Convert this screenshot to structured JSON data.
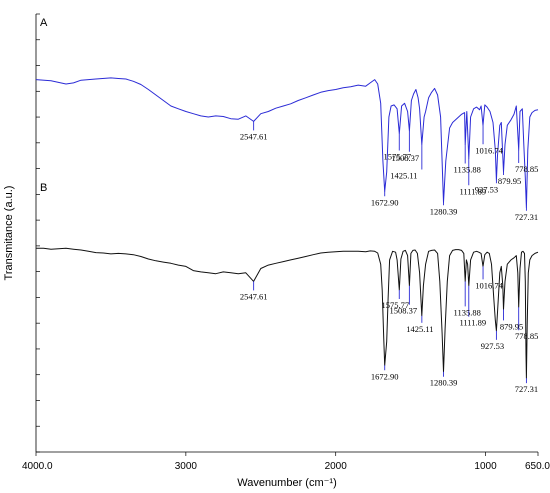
{
  "chart_data": {
    "type": "line",
    "xlabel": "Wavenumber (cm⁻¹)",
    "ylabel": "Transmitance (a.u.)",
    "xlim": [
      4000.0,
      650.0
    ],
    "x_ticks": [
      "4000.0",
      "3000",
      "2000",
      "1000",
      "650.0"
    ],
    "x_tick_values": [
      4000,
      3000,
      2000,
      1000,
      650
    ],
    "y_scale": "relative transmittance, no numeric ticks",
    "grid": false,
    "colors": {
      "A": "#2b2bd6",
      "B": "#111111",
      "marker_A": "#2b2bd6",
      "marker_B": "#2b2bd6"
    },
    "series": [
      {
        "name": "A",
        "points": [
          [
            4000,
            0.88
          ],
          [
            3900,
            0.86
          ],
          [
            3800,
            0.8
          ],
          [
            3750,
            0.82
          ],
          [
            3700,
            0.87
          ],
          [
            3600,
            0.89
          ],
          [
            3500,
            0.91
          ],
          [
            3450,
            0.9
          ],
          [
            3400,
            0.89
          ],
          [
            3350,
            0.85
          ],
          [
            3300,
            0.79
          ],
          [
            3250,
            0.7
          ],
          [
            3200,
            0.6
          ],
          [
            3150,
            0.5
          ],
          [
            3100,
            0.4
          ],
          [
            3050,
            0.35
          ],
          [
            3000,
            0.3
          ],
          [
            2950,
            0.26
          ],
          [
            2900,
            0.22
          ],
          [
            2850,
            0.2
          ],
          [
            2800,
            0.22
          ],
          [
            2750,
            0.21
          ],
          [
            2700,
            0.17
          ],
          [
            2650,
            0.16
          ],
          [
            2600,
            0.22
          ],
          [
            2547.61,
            0.12
          ],
          [
            2500,
            0.26
          ],
          [
            2450,
            0.3
          ],
          [
            2400,
            0.36
          ],
          [
            2350,
            0.4
          ],
          [
            2300,
            0.44
          ],
          [
            2250,
            0.5
          ],
          [
            2200,
            0.55
          ],
          [
            2150,
            0.6
          ],
          [
            2100,
            0.65
          ],
          [
            2050,
            0.68
          ],
          [
            2000,
            0.7
          ],
          [
            1950,
            0.73
          ],
          [
            1900,
            0.75
          ],
          [
            1850,
            0.78
          ],
          [
            1800,
            0.76
          ],
          [
            1770,
            0.82
          ],
          [
            1740,
            0.88
          ],
          [
            1720,
            0.8
          ],
          [
            1700,
            0.45
          ],
          [
            1685,
            -0.6
          ],
          [
            1672.9,
            -1.15
          ],
          [
            1660,
            -0.8
          ],
          [
            1645,
            0.2
          ],
          [
            1630,
            0.4
          ],
          [
            1610,
            0.42
          ],
          [
            1590,
            0.35
          ],
          [
            1575.77,
            -0.1
          ],
          [
            1560,
            0.4
          ],
          [
            1540,
            0.45
          ],
          [
            1520,
            0.3
          ],
          [
            1508.37,
            -0.05
          ],
          [
            1495,
            0.5
          ],
          [
            1480,
            0.62
          ],
          [
            1465,
            0.7
          ],
          [
            1450,
            0.55
          ],
          [
            1440,
            0.35
          ],
          [
            1425.11,
            -0.3
          ],
          [
            1410,
            0.2
          ],
          [
            1400,
            0.3
          ],
          [
            1380,
            0.55
          ],
          [
            1360,
            0.65
          ],
          [
            1340,
            0.72
          ],
          [
            1320,
            0.6
          ],
          [
            1300,
            0.2
          ],
          [
            1280.39,
            -1.35
          ],
          [
            1265,
            -0.6
          ],
          [
            1240,
            0.0
          ],
          [
            1220,
            0.1
          ],
          [
            1200,
            0.15
          ],
          [
            1180,
            0.2
          ],
          [
            1160,
            0.25
          ],
          [
            1140,
            0.28
          ],
          [
            1135.88,
            -0.3
          ],
          [
            1125,
            0.3
          ],
          [
            1111.89,
            -0.55
          ],
          [
            1100,
            0.2
          ],
          [
            1080,
            0.35
          ],
          [
            1060,
            0.38
          ],
          [
            1040,
            0.33
          ],
          [
            1030,
            0.4
          ],
          [
            1016.74,
            0.05
          ],
          [
            1005,
            0.42
          ],
          [
            990,
            0.38
          ],
          [
            970,
            0.3
          ],
          [
            950,
            0.1
          ],
          [
            935,
            -0.4
          ],
          [
            927.53,
            -0.95
          ],
          [
            920,
            -0.5
          ],
          [
            905,
            0.05
          ],
          [
            895,
            0.1
          ],
          [
            879.95,
            -0.8
          ],
          [
            870,
            -0.3
          ],
          [
            855,
            0.05
          ],
          [
            830,
            0.15
          ],
          [
            810,
            0.25
          ],
          [
            795,
            0.4
          ],
          [
            778.85,
            -0.4
          ],
          [
            770,
            0.3
          ],
          [
            755,
            0.35
          ],
          [
            745,
            -0.3
          ],
          [
            735,
            -0.9
          ],
          [
            727.31,
            -1.45
          ],
          [
            718,
            -0.4
          ],
          [
            705,
            0.2
          ],
          [
            690,
            0.28
          ],
          [
            670,
            0.32
          ],
          [
            650,
            0.33
          ]
        ]
      },
      {
        "name": "B",
        "points": [
          [
            4000,
            0.97
          ],
          [
            3950,
            0.97
          ],
          [
            3900,
            0.95
          ],
          [
            3850,
            0.96
          ],
          [
            3800,
            0.97
          ],
          [
            3750,
            0.95
          ],
          [
            3700,
            0.93
          ],
          [
            3650,
            0.9
          ],
          [
            3600,
            0.87
          ],
          [
            3550,
            0.86
          ],
          [
            3500,
            0.84
          ],
          [
            3450,
            0.85
          ],
          [
            3400,
            0.84
          ],
          [
            3350,
            0.82
          ],
          [
            3300,
            0.78
          ],
          [
            3250,
            0.72
          ],
          [
            3200,
            0.68
          ],
          [
            3150,
            0.65
          ],
          [
            3100,
            0.62
          ],
          [
            3050,
            0.58
          ],
          [
            3000,
            0.55
          ],
          [
            2950,
            0.45
          ],
          [
            2900,
            0.42
          ],
          [
            2850,
            0.4
          ],
          [
            2800,
            0.38
          ],
          [
            2750,
            0.42
          ],
          [
            2700,
            0.4
          ],
          [
            2650,
            0.38
          ],
          [
            2600,
            0.4
          ],
          [
            2547.61,
            0.2
          ],
          [
            2500,
            0.5
          ],
          [
            2450,
            0.58
          ],
          [
            2400,
            0.62
          ],
          [
            2350,
            0.66
          ],
          [
            2300,
            0.7
          ],
          [
            2250,
            0.74
          ],
          [
            2200,
            0.78
          ],
          [
            2150,
            0.82
          ],
          [
            2100,
            0.86
          ],
          [
            2050,
            0.88
          ],
          [
            2000,
            0.89
          ],
          [
            1950,
            0.9
          ],
          [
            1900,
            0.9
          ],
          [
            1850,
            0.9
          ],
          [
            1800,
            0.89
          ],
          [
            1770,
            0.91
          ],
          [
            1740,
            0.9
          ],
          [
            1720,
            0.86
          ],
          [
            1700,
            0.6
          ],
          [
            1690,
            0.0
          ],
          [
            1680,
            -1.1
          ],
          [
            1672.9,
            -1.75
          ],
          [
            1660,
            -1.2
          ],
          [
            1650,
            -0.2
          ],
          [
            1640,
            0.7
          ],
          [
            1620,
            0.9
          ],
          [
            1600,
            0.88
          ],
          [
            1590,
            0.7
          ],
          [
            1575.77,
            0.0
          ],
          [
            1565,
            0.72
          ],
          [
            1550,
            0.9
          ],
          [
            1535,
            0.92
          ],
          [
            1520,
            0.8
          ],
          [
            1508.37,
            0.1
          ],
          [
            1498,
            0.85
          ],
          [
            1485,
            0.92
          ],
          [
            1470,
            0.93
          ],
          [
            1455,
            0.85
          ],
          [
            1440,
            0.4
          ],
          [
            1425.11,
            -0.6
          ],
          [
            1415,
            0.1
          ],
          [
            1400,
            0.6
          ],
          [
            1380,
            0.9
          ],
          [
            1360,
            0.92
          ],
          [
            1340,
            0.93
          ],
          [
            1320,
            0.85
          ],
          [
            1305,
            0.2
          ],
          [
            1290,
            -1.0
          ],
          [
            1280.39,
            -1.9
          ],
          [
            1270,
            -0.9
          ],
          [
            1255,
            0.2
          ],
          [
            1240,
            0.8
          ],
          [
            1220,
            0.92
          ],
          [
            1200,
            0.94
          ],
          [
            1180,
            0.94
          ],
          [
            1160,
            0.92
          ],
          [
            1145,
            0.85
          ],
          [
            1135.88,
            0.2
          ],
          [
            1128,
            0.7
          ],
          [
            1120,
            0.6
          ],
          [
            1111.89,
            0.1
          ],
          [
            1100,
            0.7
          ],
          [
            1080,
            0.88
          ],
          [
            1060,
            0.9
          ],
          [
            1045,
            0.88
          ],
          [
            1030,
            0.85
          ],
          [
            1016.74,
            0.55
          ],
          [
            1005,
            0.82
          ],
          [
            990,
            0.88
          ],
          [
            975,
            0.85
          ],
          [
            960,
            0.6
          ],
          [
            945,
            -0.2
          ],
          [
            935,
            -0.7
          ],
          [
            927.53,
            -0.95
          ],
          [
            918,
            -0.4
          ],
          [
            905,
            0.4
          ],
          [
            895,
            0.55
          ],
          [
            885,
            0.1
          ],
          [
            879.95,
            -0.45
          ],
          [
            870,
            0.2
          ],
          [
            855,
            0.6
          ],
          [
            830,
            0.7
          ],
          [
            810,
            0.75
          ],
          [
            795,
            0.8
          ],
          [
            785,
            0.4
          ],
          [
            778.85,
            -0.4
          ],
          [
            770,
            0.5
          ],
          [
            760,
            0.88
          ],
          [
            750,
            0.9
          ],
          [
            740,
            0.85
          ],
          [
            735,
            0.2
          ],
          [
            730,
            -1.5
          ],
          [
            727.31,
            -2.05
          ],
          [
            722,
            -0.8
          ],
          [
            715,
            0.4
          ],
          [
            705,
            0.7
          ],
          [
            690,
            0.8
          ],
          [
            670,
            0.85
          ],
          [
            650,
            0.88
          ]
        ]
      }
    ],
    "annotations": {
      "A": [
        {
          "x": 2547.61,
          "label": "2547.61"
        },
        {
          "x": 1672.9,
          "label": "1672.90"
        },
        {
          "x": 1575.77,
          "label": "1575.77"
        },
        {
          "x": 1508.37,
          "label": "1508.37"
        },
        {
          "x": 1425.11,
          "label": "1425.11"
        },
        {
          "x": 1280.39,
          "label": "1280.39"
        },
        {
          "x": 1135.88,
          "label": "1135.88"
        },
        {
          "x": 1111.89,
          "label": "1111.89"
        },
        {
          "x": 1016.74,
          "label": "1016.74"
        },
        {
          "x": 927.53,
          "label": "927.53"
        },
        {
          "x": 879.95,
          "label": "879.95"
        },
        {
          "x": 778.85,
          "label": "778.85"
        },
        {
          "x": 727.31,
          "label": "727.31"
        }
      ],
      "B": [
        {
          "x": 2547.61,
          "label": "2547.61"
        },
        {
          "x": 1672.9,
          "label": "1672.90"
        },
        {
          "x": 1575.77,
          "label": "1575.77"
        },
        {
          "x": 1508.37,
          "label": "1508.37"
        },
        {
          "x": 1425.11,
          "label": "1425.11"
        },
        {
          "x": 1280.39,
          "label": "1280.39"
        },
        {
          "x": 1135.88,
          "label": "1135.88"
        },
        {
          "x": 1111.89,
          "label": "1111.89"
        },
        {
          "x": 1016.74,
          "label": "1016.74"
        },
        {
          "x": 927.53,
          "label": "927.53"
        },
        {
          "x": 879.95,
          "label": "879.95"
        },
        {
          "x": 778.85,
          "label": "778.85"
        },
        {
          "x": 727.31,
          "label": "727.31"
        }
      ]
    }
  }
}
